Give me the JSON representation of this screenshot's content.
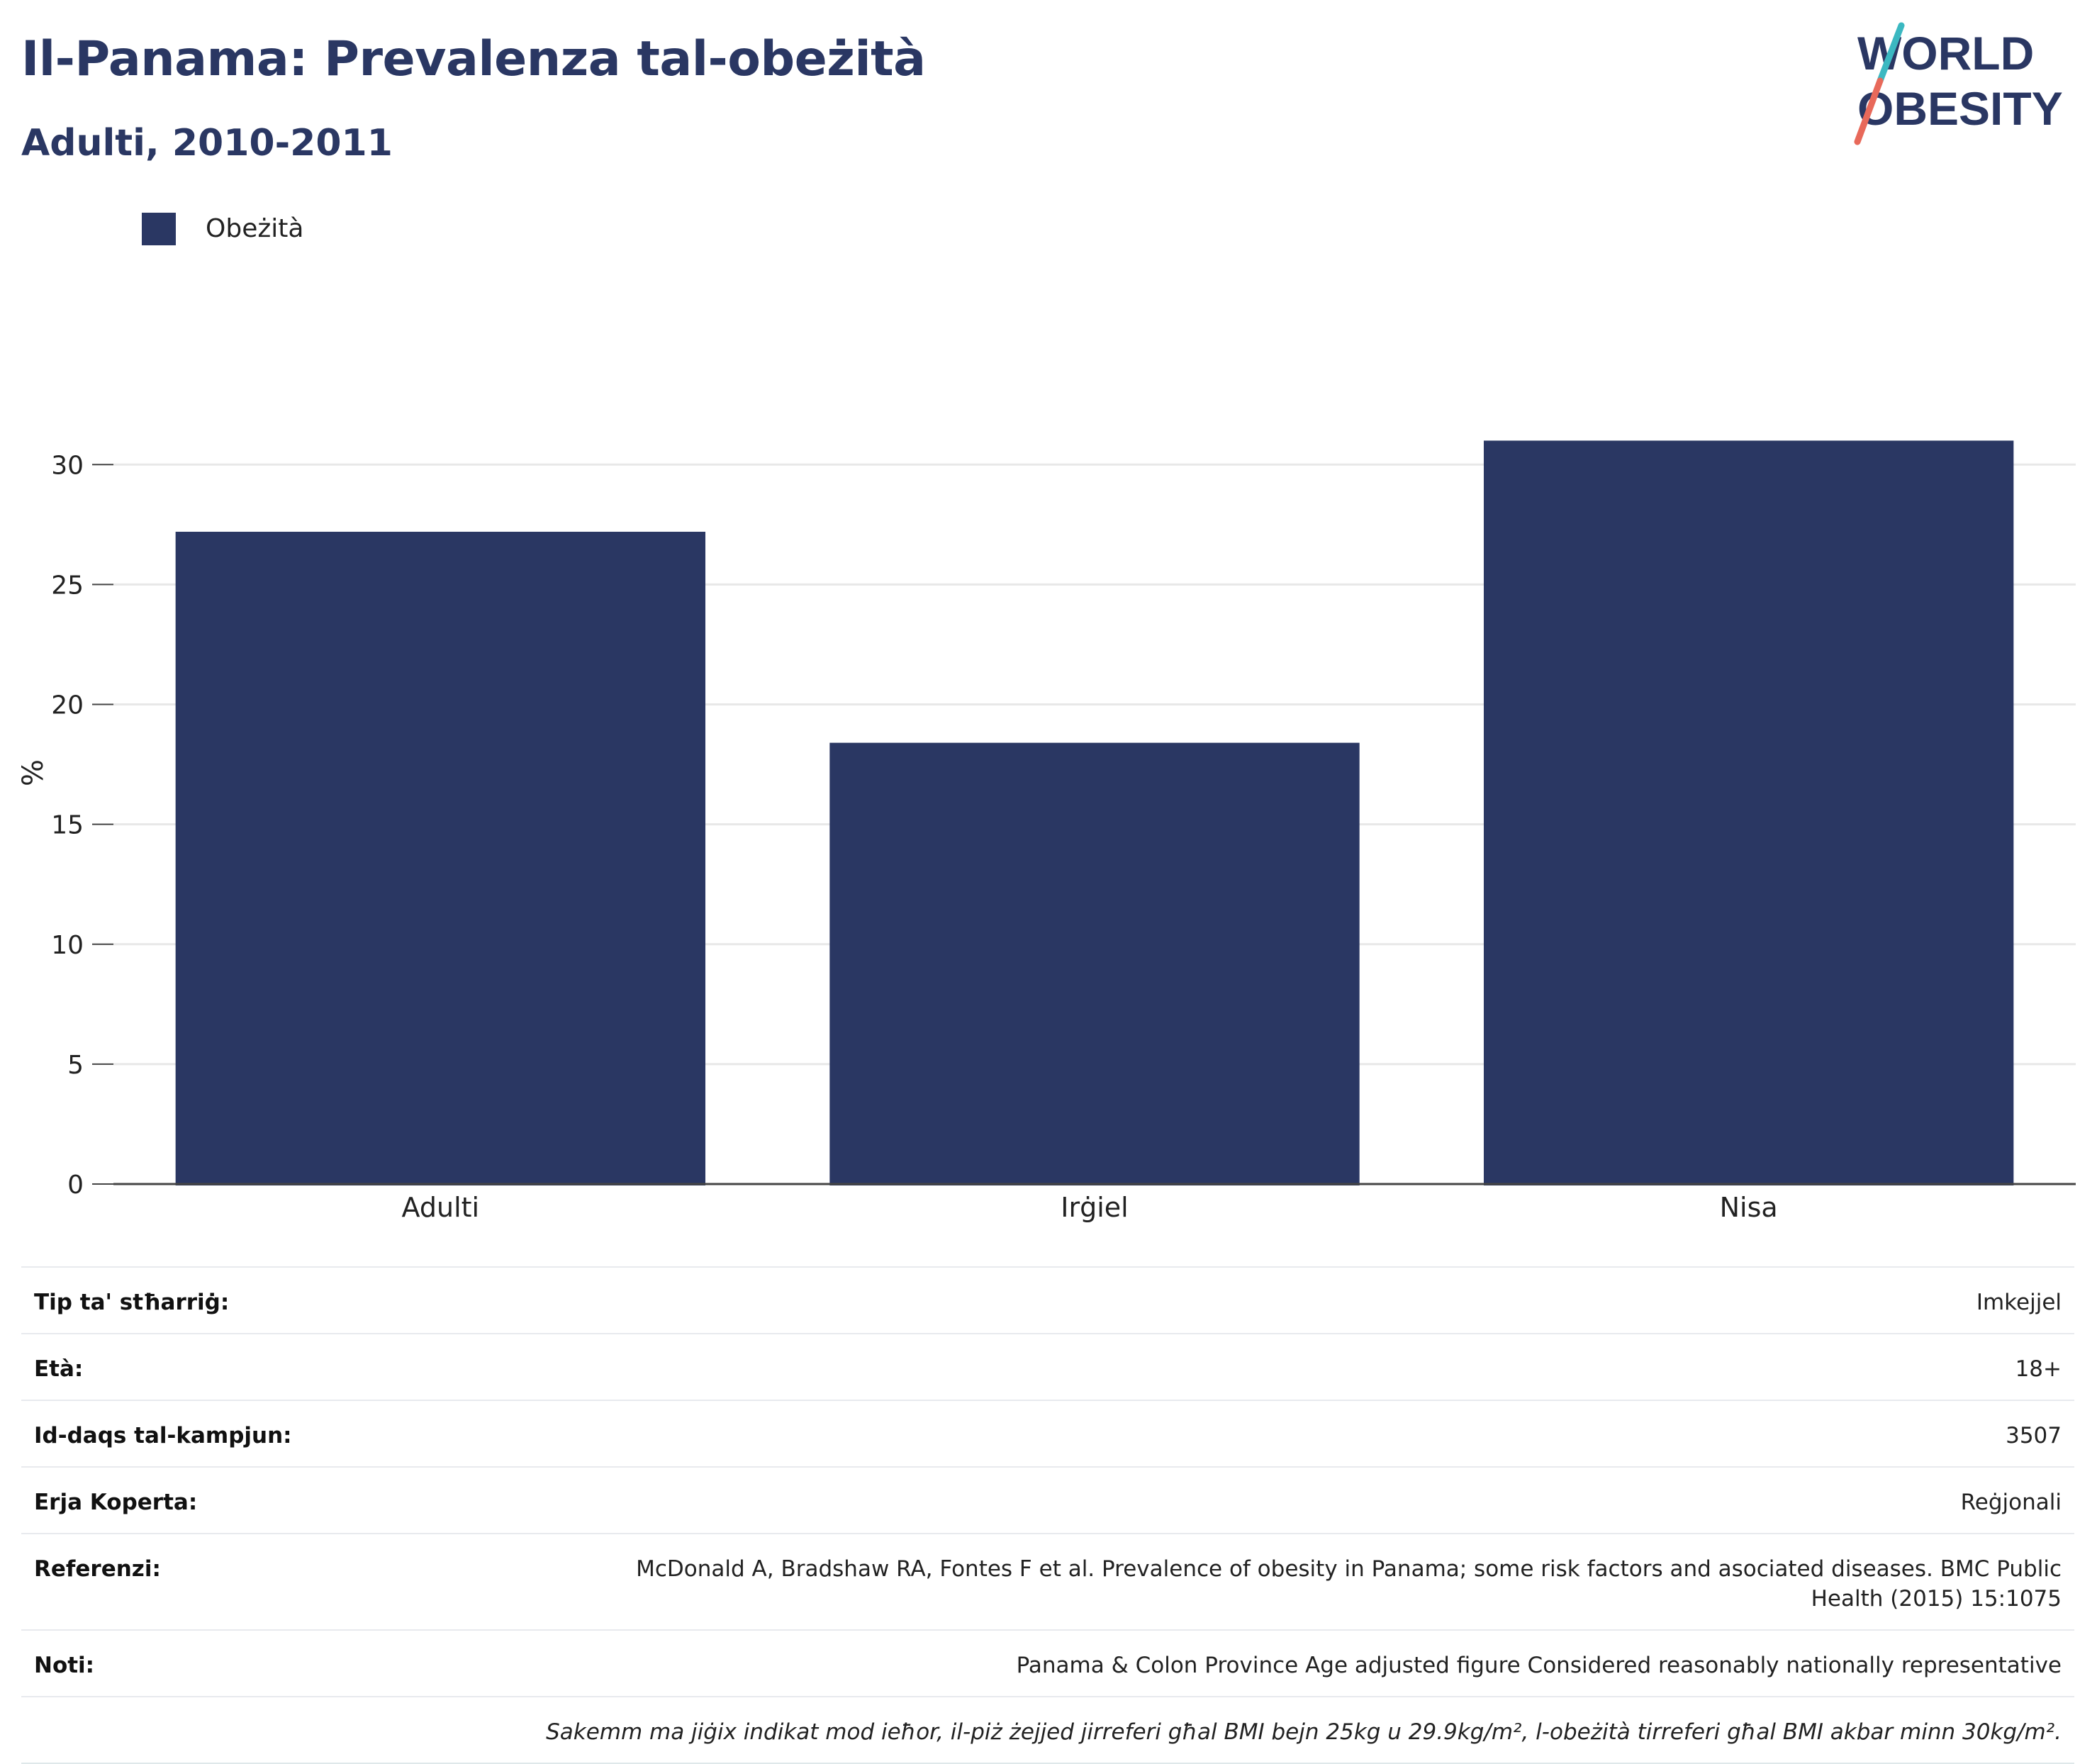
{
  "header": {
    "title": "Il-Panama: Prevalenza tal-obeżità",
    "subtitle": "Adulti, 2010-2011"
  },
  "logo": {
    "line1": "WORLD",
    "line2": "OBESITY"
  },
  "colors": {
    "bar": "#2a3763",
    "title": "#2a3763",
    "logo_teal": "#3bb8c1",
    "logo_coral": "#e8695a"
  },
  "chart_data": {
    "type": "bar",
    "categories": [
      "Adulti",
      "Irġiel",
      "Nisa"
    ],
    "series": [
      {
        "name": "Obeżità",
        "values": [
          27.2,
          18.4,
          31.0
        ]
      }
    ],
    "ylabel": "%",
    "xlabel": "",
    "ylim": [
      0,
      34
    ],
    "yticks": [
      0,
      5,
      10,
      15,
      20,
      25,
      30
    ],
    "grid": true,
    "legend": "top-left"
  },
  "details": [
    {
      "label": "Tip ta' stħarriġ:",
      "value": "Imkejjel"
    },
    {
      "label": "Età:",
      "value": "18+"
    },
    {
      "label": "Id-daqs tal-kampjun:",
      "value": "3507"
    },
    {
      "label": "Erja Koperta:",
      "value": "Reġjonali"
    },
    {
      "label": "Referenzi:",
      "value": "McDonald A, Bradshaw RA, Fontes F et al. Prevalence of obesity in Panama; some risk factors and asociated diseases. BMC Public Health (2015) 15:1075"
    },
    {
      "label": "Noti:",
      "value": "Panama & Colon Province Age adjusted figure Considered reasonably nationally representative"
    }
  ],
  "footnote": "Sakemm ma jiġix indikat mod ieħor, il-piż żejjed jirreferi għal BMI bejn 25kg u 29.9kg/m², l-obeżità tirreferi għal BMI akbar minn 30kg/m²."
}
